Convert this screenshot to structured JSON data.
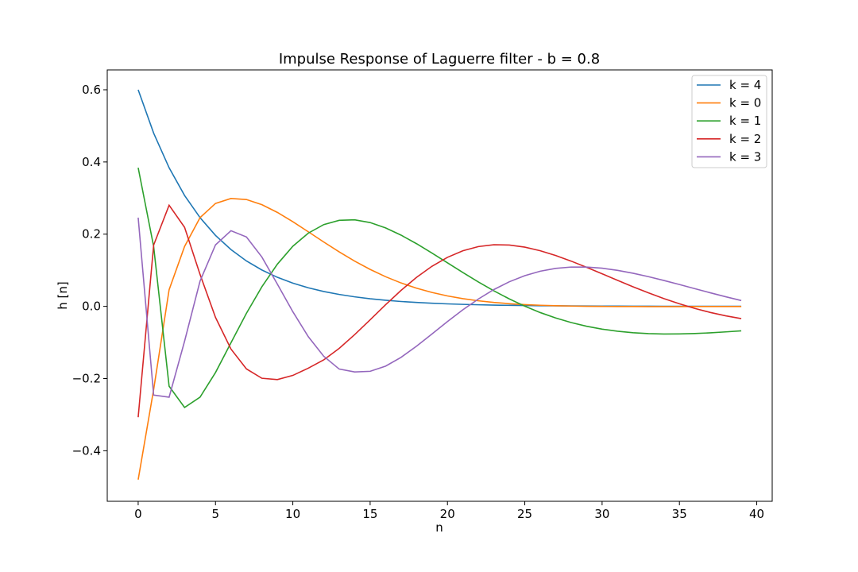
{
  "chart_data": {
    "type": "line",
    "title": "Impulse Response of Laguerre filter - b = 0.8",
    "xlabel": "n",
    "ylabel": "h [n]",
    "xlim": [
      -2,
      41
    ],
    "ylim": [
      -0.54,
      0.655
    ],
    "xticks": [
      0,
      5,
      10,
      15,
      20,
      25,
      30,
      35,
      40
    ],
    "yticks": [
      -0.4,
      -0.2,
      0.0,
      0.2,
      0.4,
      0.6
    ],
    "ytick_labels": [
      "−0.4",
      "−0.2",
      "0.0",
      "0.2",
      "0.4",
      "0.6"
    ],
    "grid": false,
    "legend_position": "top-right",
    "x": [
      0,
      1,
      2,
      3,
      4,
      5,
      6,
      7,
      8,
      9,
      10,
      11,
      12,
      13,
      14,
      15,
      16,
      17,
      18,
      19,
      20,
      21,
      22,
      23,
      24,
      25,
      26,
      27,
      28,
      29,
      30,
      31,
      32,
      33,
      34,
      35,
      36,
      37,
      38,
      39
    ],
    "series": [
      {
        "name": "k = 4",
        "color": "#1f77b4",
        "values": [
          0.6,
          0.48,
          0.384,
          0.3072,
          0.2458,
          0.1966,
          0.1573,
          0.1258,
          0.1007,
          0.0805,
          0.0644,
          0.0515,
          0.0412,
          0.033,
          0.0264,
          0.0211,
          0.0169,
          0.0135,
          0.0108,
          0.0086,
          0.0069,
          0.0055,
          0.0044,
          0.0035,
          0.0028,
          0.0023,
          0.0018,
          0.0015,
          0.0012,
          0.0009,
          0.0007,
          0.0006,
          0.0005,
          0.0004,
          0.0003,
          0.0002,
          0.0002,
          0.0001,
          0.0001,
          0.0001
        ]
      },
      {
        "name": "k = 0",
        "color": "#ff7f0e",
        "values": [
          -0.48,
          -0.2304,
          0.0461,
          0.1659,
          0.2458,
          0.2851,
          0.2988,
          0.2959,
          0.2817,
          0.2603,
          0.2345,
          0.2066,
          0.1783,
          0.1509,
          0.1254,
          0.1023,
          0.0821,
          0.0648,
          0.0503,
          0.0385,
          0.0289,
          0.0213,
          0.0154,
          0.0109,
          0.0074,
          0.0048,
          0.003,
          0.0017,
          0.0008,
          0.0002,
          -0.0002,
          -0.0004,
          -0.0005,
          -0.0006,
          -0.0006,
          -0.0006,
          -0.0005,
          -0.0005,
          -0.0004,
          -0.0004
        ]
      },
      {
        "name": "k = 1",
        "color": "#2ca02c",
        "values": [
          0.384,
          0.1659,
          -0.2212,
          -0.2801,
          -0.2516,
          -0.1833,
          -0.1009,
          -0.0193,
          0.0543,
          0.1168,
          0.1665,
          0.2028,
          0.2265,
          0.2384,
          0.2397,
          0.2321,
          0.2174,
          0.1973,
          0.1736,
          0.1476,
          0.1207,
          0.0937,
          0.0676,
          0.0431,
          0.0206,
          0.0005,
          -0.0172,
          -0.0323,
          -0.0449,
          -0.0551,
          -0.0631,
          -0.069,
          -0.0731,
          -0.0755,
          -0.0765,
          -0.0763,
          -0.0752,
          -0.0733,
          -0.0707,
          -0.0677
        ]
      },
      {
        "name": "k = 2",
        "color": "#d62728",
        "values": [
          -0.3072,
          0.1697,
          0.2801,
          0.2189,
          0.0887,
          -0.0306,
          -0.1183,
          -0.1732,
          -0.1992,
          -0.2028,
          -0.1913,
          -0.1713,
          -0.1483,
          -0.1164,
          -0.0782,
          -0.0372,
          0.0045,
          0.0443,
          0.0803,
          0.1111,
          0.1358,
          0.154,
          0.1656,
          0.1707,
          0.1699,
          0.1641,
          0.1541,
          0.1409,
          0.1253,
          0.1082,
          0.0902,
          0.0721,
          0.0543,
          0.0373,
          0.0215,
          0.0071,
          -0.0058,
          -0.0169,
          -0.0262,
          -0.0339
        ]
      },
      {
        "name": "k = 3",
        "color": "#9467bd",
        "values": [
          0.2458,
          -0.2458,
          -0.2516,
          -0.0966,
          0.0699,
          0.1703,
          0.2096,
          0.1922,
          0.1366,
          0.0617,
          -0.0148,
          -0.0839,
          -0.1383,
          -0.1737,
          -0.1817,
          -0.1799,
          -0.1655,
          -0.1412,
          -0.1104,
          -0.0766,
          -0.0422,
          -0.0094,
          0.0204,
          0.0465,
          0.0681,
          0.0851,
          0.0974,
          0.1052,
          0.1089,
          0.1089,
          0.1057,
          0.0998,
          0.0918,
          0.0823,
          0.0717,
          0.0605,
          0.049,
          0.0376,
          0.0266,
          0.0161
        ]
      }
    ]
  }
}
